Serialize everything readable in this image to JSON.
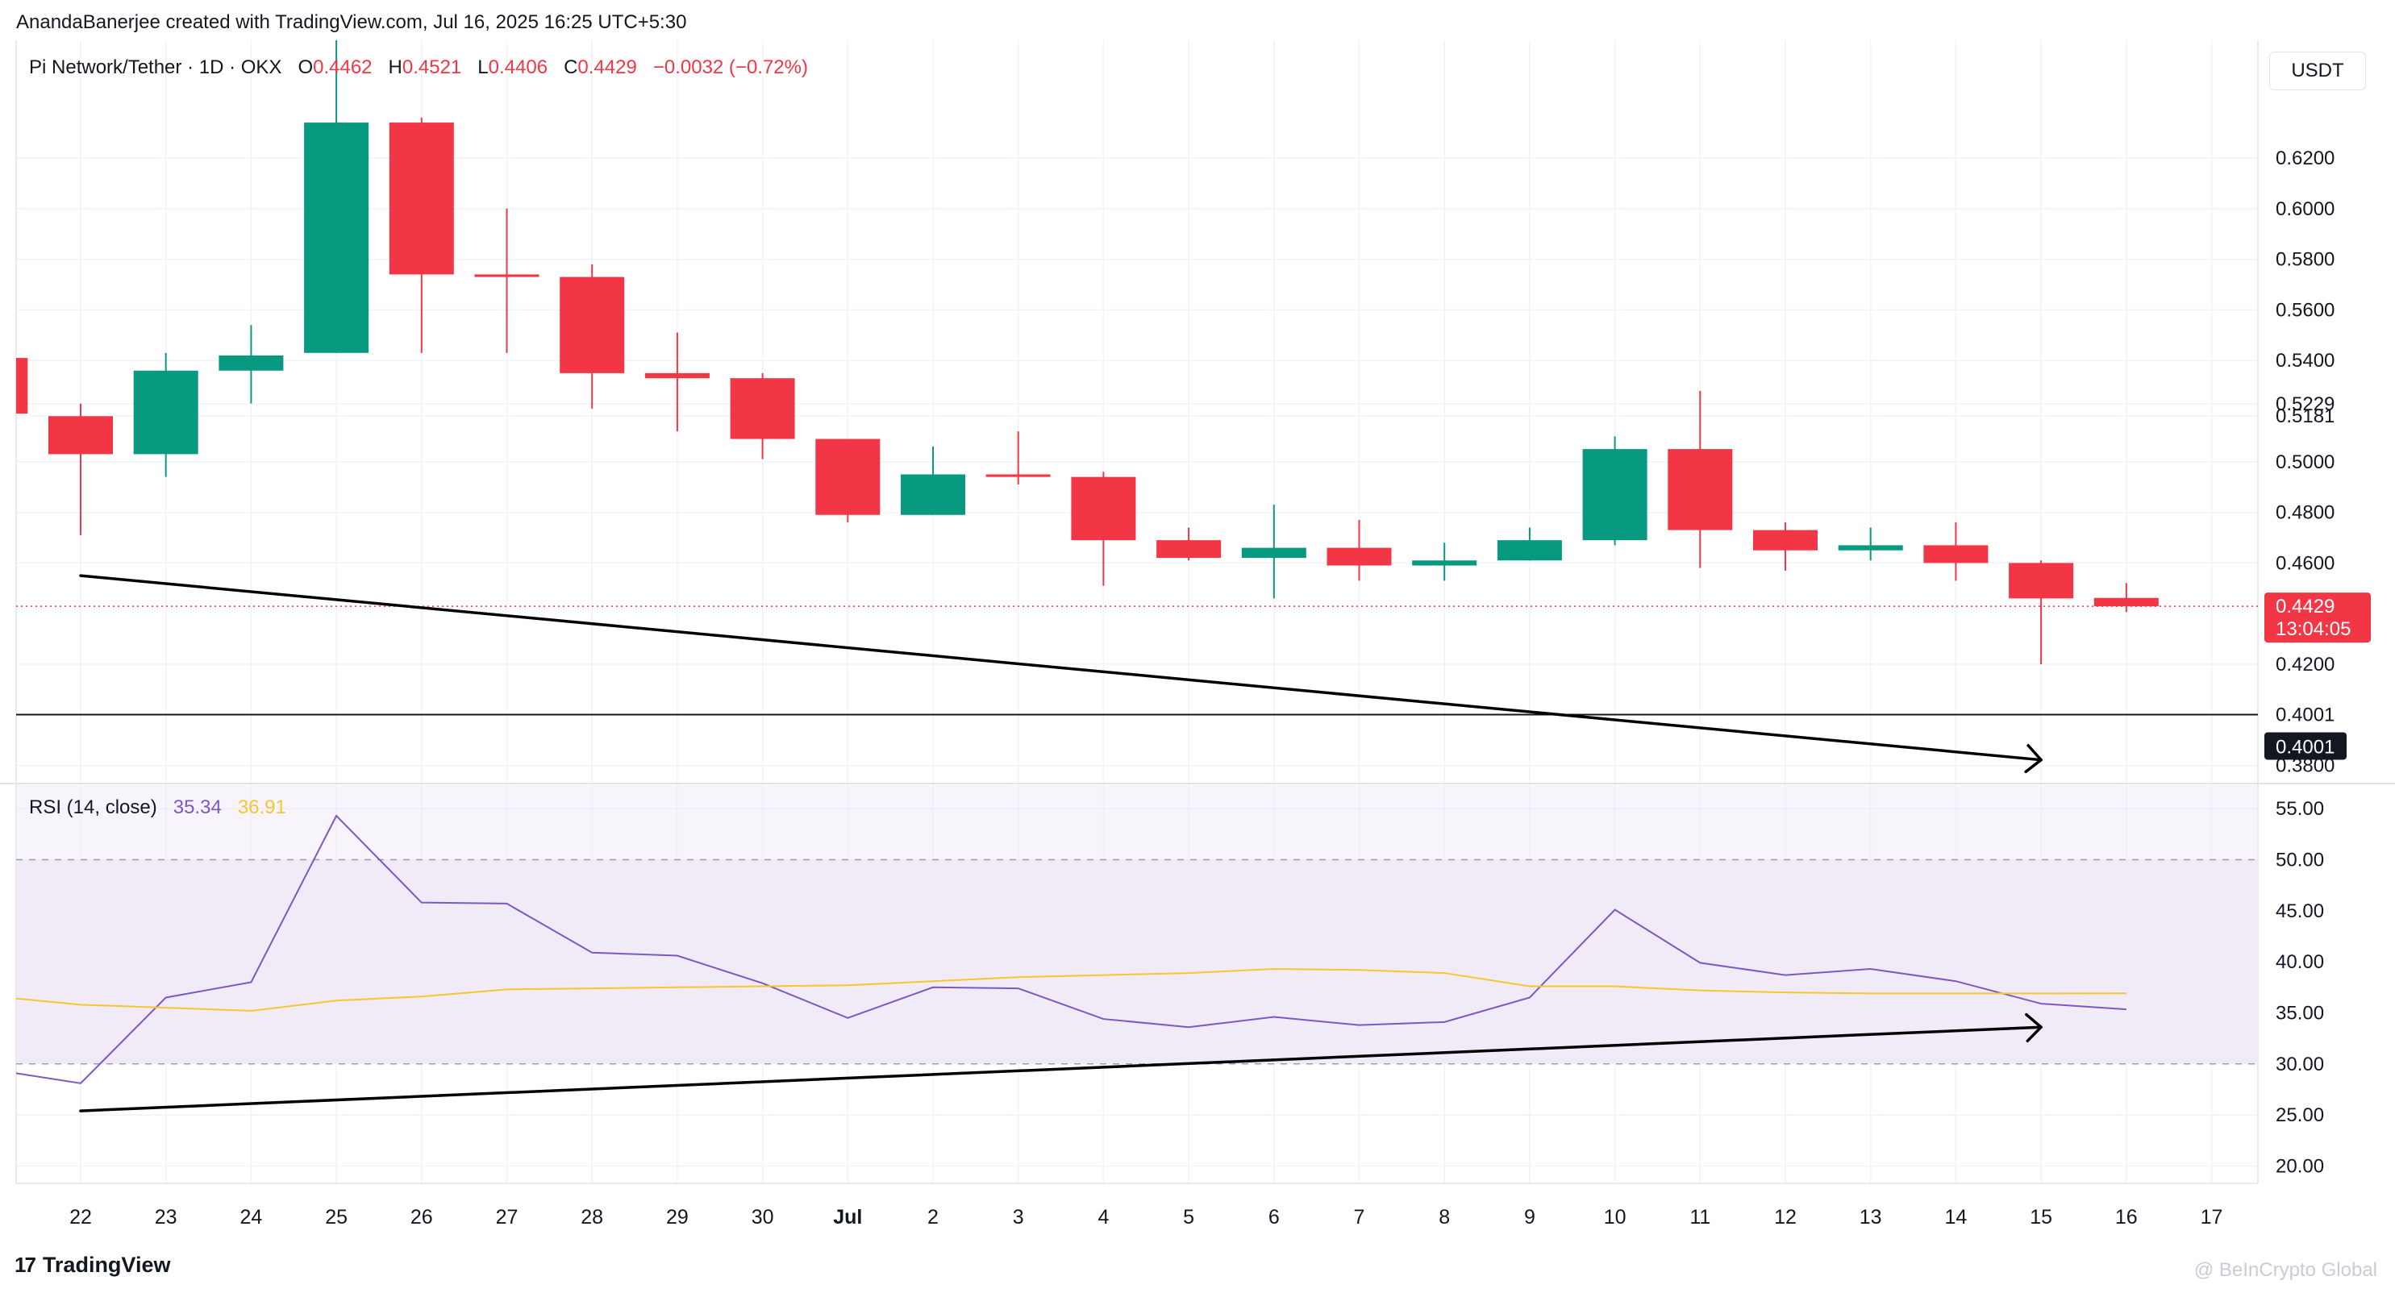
{
  "attribution": "AnandaBanerjee created with TradingView.com, Jul 16, 2025 16:25 UTC+5:30",
  "currency_label": "USDT",
  "footer": {
    "brand": "TradingView",
    "mark": "17",
    "watermark": "@ BeInCrypto Global"
  },
  "legend": {
    "symbol": "Pi Network/Tether · 1D · OKX",
    "o_label": "O",
    "o_value": "0.4462",
    "h_label": "H",
    "h_value": "0.4521",
    "l_label": "L",
    "l_value": "0.4406",
    "c_label": "C",
    "c_value": "0.4429",
    "change": "−0.0032 (−0.72%)"
  },
  "rsi_legend": {
    "label": "RSI (14, close)",
    "rsi_value": "35.34",
    "ma_value": "36.91"
  },
  "colors": {
    "up": "#089981",
    "down": "#f23645",
    "rsi_line": "#7e57c2",
    "rsi_ma": "#f7c52c",
    "rsi_band": "#ede7f6",
    "grid": "#f0f3fa",
    "trend": "#000000"
  },
  "chart_data": [
    {
      "type": "candlestick",
      "x_labels": [
        "22",
        "23",
        "24",
        "25",
        "26",
        "27",
        "28",
        "29",
        "30",
        "Jul",
        "2",
        "3",
        "4",
        "5",
        "6",
        "7",
        "8",
        "9",
        "10",
        "11",
        "12",
        "13",
        "14",
        "15",
        "16",
        "17"
      ],
      "y_ticks": [
        "0.6200",
        "0.6000",
        "0.5800",
        "0.5600",
        "0.5400",
        "0.5229",
        "0.5181",
        "0.5000",
        "0.4800",
        "0.4600",
        "0.4200",
        "0.4001",
        "0.3800"
      ],
      "ylim": [
        0.3735,
        0.6665
      ],
      "candles": [
        {
          "x": "21",
          "o": 0.541,
          "h": 0.541,
          "l": 0.519,
          "c": 0.519
        },
        {
          "x": "22",
          "o": 0.518,
          "h": 0.523,
          "l": 0.471,
          "c": 0.503
        },
        {
          "x": "23",
          "o": 0.503,
          "h": 0.543,
          "l": 0.494,
          "c": 0.536
        },
        {
          "x": "24",
          "o": 0.536,
          "h": 0.554,
          "l": 0.523,
          "c": 0.542
        },
        {
          "x": "25",
          "o": 0.543,
          "h": 0.669,
          "l": 0.543,
          "c": 0.634
        },
        {
          "x": "26",
          "o": 0.634,
          "h": 0.636,
          "l": 0.543,
          "c": 0.574
        },
        {
          "x": "27",
          "o": 0.574,
          "h": 0.6,
          "l": 0.543,
          "c": 0.573
        },
        {
          "x": "28",
          "o": 0.573,
          "h": 0.578,
          "l": 0.521,
          "c": 0.535
        },
        {
          "x": "29",
          "o": 0.535,
          "h": 0.551,
          "l": 0.512,
          "c": 0.533
        },
        {
          "x": "30",
          "o": 0.533,
          "h": 0.535,
          "l": 0.501,
          "c": 0.509
        },
        {
          "x": "Jul",
          "o": 0.509,
          "h": 0.509,
          "l": 0.476,
          "c": 0.479
        },
        {
          "x": "2",
          "o": 0.479,
          "h": 0.506,
          "l": 0.479,
          "c": 0.495
        },
        {
          "x": "3",
          "o": 0.495,
          "h": 0.512,
          "l": 0.491,
          "c": 0.494
        },
        {
          "x": "4",
          "o": 0.494,
          "h": 0.496,
          "l": 0.451,
          "c": 0.469
        },
        {
          "x": "5",
          "o": 0.469,
          "h": 0.474,
          "l": 0.461,
          "c": 0.462
        },
        {
          "x": "6",
          "o": 0.462,
          "h": 0.483,
          "l": 0.446,
          "c": 0.466
        },
        {
          "x": "7",
          "o": 0.466,
          "h": 0.477,
          "l": 0.453,
          "c": 0.459
        },
        {
          "x": "8",
          "o": 0.459,
          "h": 0.468,
          "l": 0.453,
          "c": 0.461
        },
        {
          "x": "9",
          "o": 0.461,
          "h": 0.474,
          "l": 0.461,
          "c": 0.469
        },
        {
          "x": "10",
          "o": 0.469,
          "h": 0.51,
          "l": 0.467,
          "c": 0.505
        },
        {
          "x": "11",
          "o": 0.505,
          "h": 0.528,
          "l": 0.458,
          "c": 0.473
        },
        {
          "x": "12",
          "o": 0.473,
          "h": 0.476,
          "l": 0.457,
          "c": 0.465
        },
        {
          "x": "13",
          "o": 0.465,
          "h": 0.474,
          "l": 0.461,
          "c": 0.467
        },
        {
          "x": "14",
          "o": 0.467,
          "h": 0.476,
          "l": 0.453,
          "c": 0.46
        },
        {
          "x": "15",
          "o": 0.46,
          "h": 0.461,
          "l": 0.42,
          "c": 0.446
        },
        {
          "x": "16",
          "o": 0.4462,
          "h": 0.4521,
          "l": 0.4406,
          "c": 0.4429
        }
      ],
      "last_price": "0.4429",
      "countdown": "13:04:05",
      "support_level": "0.4001",
      "trend_line": {
        "from": {
          "x": "22",
          "y": 0.455
        },
        "to": {
          "x": "15",
          "y": 0.3822
        }
      }
    },
    {
      "type": "line",
      "y_ticks": [
        "55.00",
        "50.00",
        "45.00",
        "40.00",
        "35.00",
        "30.00",
        "25.00",
        "20.00"
      ],
      "ylim": [
        18.3,
        57.3
      ],
      "bands": {
        "upper": 50,
        "lower": 30
      },
      "series": [
        {
          "name": "RSI",
          "values": [
            29.4,
            28.1,
            36.5,
            38.0,
            54.3,
            45.8,
            45.7,
            40.9,
            40.6,
            37.9,
            34.5,
            37.5,
            37.4,
            34.4,
            33.6,
            34.6,
            33.8,
            34.1,
            36.5,
            45.1,
            39.9,
            38.7,
            39.3,
            38.1,
            35.9,
            35.34
          ]
        },
        {
          "name": "RSI-based MA",
          "values": [
            36.6,
            35.8,
            35.5,
            35.2,
            36.2,
            36.6,
            37.3,
            37.4,
            37.5,
            37.6,
            37.7,
            38.1,
            38.5,
            38.7,
            38.9,
            39.3,
            39.2,
            38.9,
            37.6,
            37.6,
            37.2,
            37.0,
            36.9,
            36.9,
            36.9,
            36.91
          ]
        }
      ],
      "trend_line": {
        "from": {
          "x": "22",
          "y": 25.4
        },
        "to": {
          "x": "15",
          "y": 33.6
        }
      }
    }
  ]
}
